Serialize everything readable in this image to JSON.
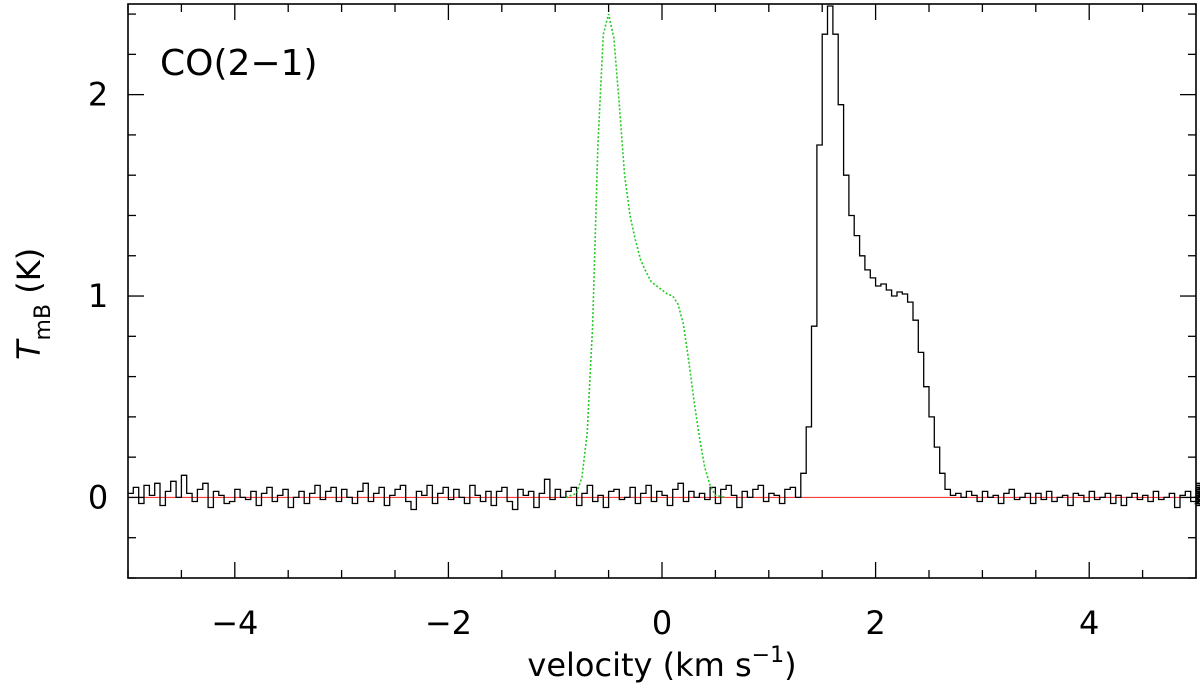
{
  "chart_data": {
    "type": "line",
    "annotation": "CO(2−1)",
    "xlabel": {
      "main": "velocity (km s",
      "sup": "−1",
      "close": ")"
    },
    "ylabel": {
      "main": "T",
      "sub": "mB",
      "unit": " (K)"
    },
    "xlim": [
      -5,
      5
    ],
    "ylim": [
      -0.4,
      2.45
    ],
    "x_major_ticks": [
      -4,
      -2,
      0,
      2,
      4
    ],
    "x_tick_labels": [
      "−4",
      "−2",
      "0",
      "2",
      "4"
    ],
    "y_major_ticks": [
      0,
      1,
      2
    ],
    "y_tick_labels": [
      "0",
      "1",
      "2"
    ],
    "grid": false,
    "baseline": {
      "y": 0,
      "color": "#ff3b3b"
    },
    "series": [
      {
        "role": "spectrum",
        "style": "histogram",
        "color": "#000000",
        "channel_width": 0.05,
        "x_start": -4.975,
        "y": [
          0.02,
          0.05,
          -0.03,
          0.06,
          0.01,
          0.07,
          -0.04,
          0.03,
          0.08,
          0.0,
          0.11,
          0.02,
          -0.02,
          0.04,
          0.07,
          -0.05,
          0.03,
          0.01,
          -0.03,
          -0.02,
          0.04,
          0.0,
          -0.01,
          0.03,
          -0.04,
          0.02,
          0.05,
          -0.02,
          0.01,
          0.04,
          -0.05,
          0.0,
          0.03,
          -0.03,
          0.02,
          0.06,
          -0.01,
          0.03,
          0.05,
          -0.02,
          0.04,
          0.0,
          -0.03,
          0.03,
          0.07,
          -0.02,
          0.02,
          0.05,
          -0.04,
          0.01,
          0.04,
          0.06,
          -0.02,
          -0.06,
          0.03,
          0.01,
          0.06,
          -0.03,
          0.02,
          0.05,
          -0.01,
          0.04,
          0.0,
          -0.03,
          0.06,
          0.01,
          -0.02,
          0.03,
          -0.04,
          0.03,
          0.05,
          -0.02,
          -0.06,
          0.04,
          0.01,
          0.03,
          -0.05,
          0.02,
          0.09,
          -0.01,
          0.04,
          0.0,
          0.03,
          0.05,
          -0.04,
          0.02,
          0.06,
          -0.02,
          0.01,
          -0.05,
          0.03,
          0.04,
          -0.01,
          0.0,
          0.05,
          -0.03,
          0.02,
          0.06,
          -0.02,
          0.03,
          0.01,
          -0.04,
          0.04,
          0.07,
          -0.02,
          0.03,
          0.0,
          0.02,
          -0.01,
          0.05,
          -0.03,
          0.04,
          0.06,
          0.01,
          -0.05,
          0.03,
          0.0,
          0.04,
          0.06,
          -0.02,
          0.02,
          0.01,
          -0.03,
          0.04,
          0.05,
          0.0,
          0.12,
          0.35,
          0.85,
          1.75,
          2.3,
          2.44,
          2.3,
          1.95,
          1.6,
          1.4,
          1.3,
          1.2,
          1.13,
          1.09,
          1.05,
          1.06,
          1.03,
          1.0,
          1.02,
          1.01,
          0.97,
          0.88,
          0.72,
          0.55,
          0.4,
          0.25,
          0.12,
          0.04,
          0.01,
          0.02,
          0.0,
          0.03,
          0.01,
          -0.02,
          0.03,
          0.0,
          0.01,
          -0.03,
          0.02,
          0.04,
          -0.01,
          0.0,
          0.02,
          -0.03,
          0.02,
          -0.01,
          0.03,
          -0.02,
          0.0,
          0.01,
          -0.04,
          0.02,
          0.01,
          -0.02,
          0.03,
          -0.01,
          0.0,
          0.02,
          -0.03,
          0.01,
          -0.04,
          0.0,
          0.02,
          -0.01,
          0.01,
          -0.02,
          0.03,
          -0.01,
          0.0,
          0.02,
          -0.05,
          0.01,
          0.03,
          -0.02,
          0.04,
          0.0,
          -0.03,
          0.02,
          0.01,
          -0.02,
          0.03,
          0.0,
          0.05,
          -0.01,
          0.02,
          -0.04,
          0.01,
          0.03,
          -0.02,
          0.02,
          0.04,
          -0.03,
          0.01,
          0.02,
          -0.02,
          0.05,
          0.02,
          -0.01,
          0.06,
          0.03,
          -0.02,
          0.05,
          0.01,
          0.04,
          -0.01,
          0.03,
          0.06,
          0.0,
          0.02,
          -0.03,
          0.05,
          0.07,
          0.01
        ]
      },
      {
        "role": "fit",
        "style": "smooth",
        "color": "#22cc22",
        "x": [
          -0.9,
          -0.8,
          -0.75,
          -0.7,
          -0.65,
          -0.6,
          -0.55,
          -0.5,
          -0.45,
          -0.4,
          -0.35,
          -0.3,
          -0.25,
          -0.2,
          -0.15,
          -0.1,
          -0.05,
          0.0,
          0.05,
          0.1,
          0.15,
          0.2,
          0.25,
          0.3,
          0.35,
          0.4,
          0.45,
          0.5,
          0.6
        ],
        "y": [
          0.0,
          0.02,
          0.1,
          0.32,
          0.85,
          1.75,
          2.3,
          2.4,
          2.28,
          1.95,
          1.6,
          1.4,
          1.28,
          1.18,
          1.12,
          1.07,
          1.05,
          1.03,
          1.01,
          1.0,
          0.96,
          0.86,
          0.68,
          0.48,
          0.3,
          0.15,
          0.06,
          0.01,
          0.0
        ]
      }
    ]
  }
}
